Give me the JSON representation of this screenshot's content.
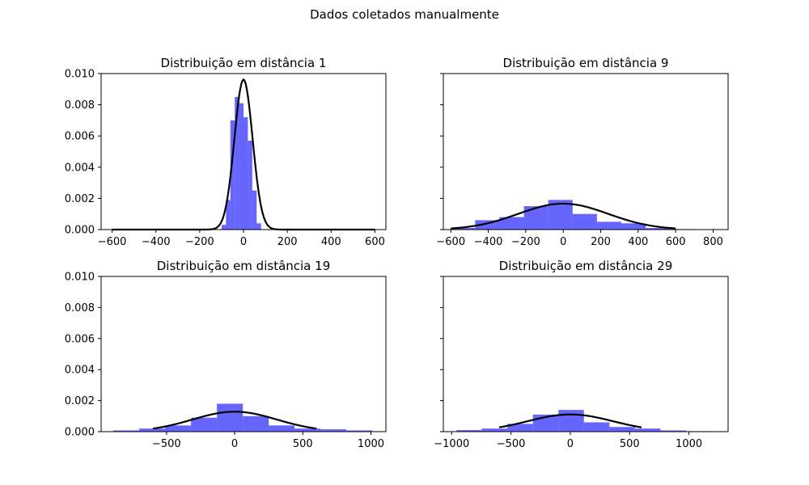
{
  "figure": {
    "title": "Dados coletados manualmente"
  },
  "colors": {
    "bar": "#0000ff",
    "bar_opacity": 0.6,
    "curve": "#000000"
  },
  "chart_data": [
    {
      "type": "bar",
      "title": "Distribuição em distância 1",
      "xlim": [
        -650,
        650
      ],
      "ylim": [
        0,
        0.01
      ],
      "xticks": [
        -600,
        -400,
        -200,
        0,
        200,
        400,
        600
      ],
      "yticks": [
        0.0,
        0.002,
        0.004,
        0.006,
        0.008,
        0.01
      ],
      "ytick_labels": [
        "0.000",
        "0.002",
        "0.004",
        "0.006",
        "0.008",
        "0.010"
      ],
      "show_yticklabels": true,
      "histogram": {
        "bin_edges": [
          -100,
          -80,
          -60,
          -40,
          -20,
          0,
          20,
          40,
          60,
          80
        ],
        "density": [
          0.0003,
          0.0019,
          0.007,
          0.0085,
          0.0081,
          0.0072,
          0.0057,
          0.0025,
          0.0004
        ]
      },
      "normal_fit": {
        "mean": 0,
        "std": 41.5,
        "x_range": [
          -600,
          600
        ]
      }
    },
    {
      "type": "bar",
      "title": "Distribuição em distância 9",
      "xlim": [
        -640,
        880
      ],
      "ylim": [
        0,
        0.01
      ],
      "xticks": [
        -600,
        -400,
        -200,
        0,
        200,
        400,
        600,
        800
      ],
      "yticks": [
        0.0,
        0.002,
        0.004,
        0.006,
        0.008,
        0.01
      ],
      "ytick_labels": [
        "0.000",
        "0.002",
        "0.004",
        "0.006",
        "0.008",
        "0.010"
      ],
      "show_yticklabels": false,
      "histogram": {
        "bin_edges": [
          -600,
          -470,
          -340,
          -210,
          -80,
          50,
          180,
          310,
          440,
          570,
          700
        ],
        "density": [
          0.0001,
          0.0006,
          0.0008,
          0.0015,
          0.0019,
          0.001,
          0.0005,
          0.0004,
          0.0001,
          3e-05
        ]
      },
      "normal_fit": {
        "mean": 0,
        "std": 240,
        "x_range": [
          -600,
          600
        ]
      }
    },
    {
      "type": "bar",
      "title": "Distribuição em distância 19",
      "xlim": [
        -980,
        1110
      ],
      "ylim": [
        0,
        0.01
      ],
      "xticks": [
        -500,
        0,
        500,
        1000
      ],
      "yticks": [
        0.0,
        0.002,
        0.004,
        0.006,
        0.008,
        0.01
      ],
      "ytick_labels": [
        "0.000",
        "0.002",
        "0.004",
        "0.006",
        "0.008",
        "0.010"
      ],
      "show_yticklabels": true,
      "histogram": {
        "bin_edges": [
          -890,
          -700,
          -510,
          -320,
          -130,
          60,
          250,
          440,
          630,
          820,
          1010
        ],
        "density": [
          8e-05,
          0.0002,
          0.0004,
          0.0009,
          0.0018,
          0.001,
          0.0004,
          0.0002,
          0.00015,
          8e-05
        ]
      },
      "normal_fit": {
        "mean": 0,
        "std": 310,
        "x_range": [
          -600,
          600
        ]
      }
    },
    {
      "type": "bar",
      "title": "Distribuição em distância 29",
      "xlim": [
        -1070,
        1330
      ],
      "ylim": [
        0,
        0.01
      ],
      "xticks": [
        -1000,
        -500,
        0,
        500,
        1000
      ],
      "yticks": [
        0.0,
        0.002,
        0.004,
        0.006,
        0.008,
        0.01
      ],
      "ytick_labels": [
        "0.000",
        "0.002",
        "0.004",
        "0.006",
        "0.008",
        "0.010"
      ],
      "show_yticklabels": false,
      "histogram": {
        "bin_edges": [
          -960,
          -745,
          -530,
          -315,
          -100,
          115,
          330,
          545,
          760,
          975,
          1190
        ],
        "density": [
          0.0001,
          0.0002,
          0.0005,
          0.0011,
          0.0014,
          0.0006,
          0.0003,
          0.0002,
          8e-05,
          3e-05
        ]
      },
      "normal_fit": {
        "mean": 0,
        "std": 360,
        "x_range": [
          -600,
          600
        ]
      }
    }
  ]
}
